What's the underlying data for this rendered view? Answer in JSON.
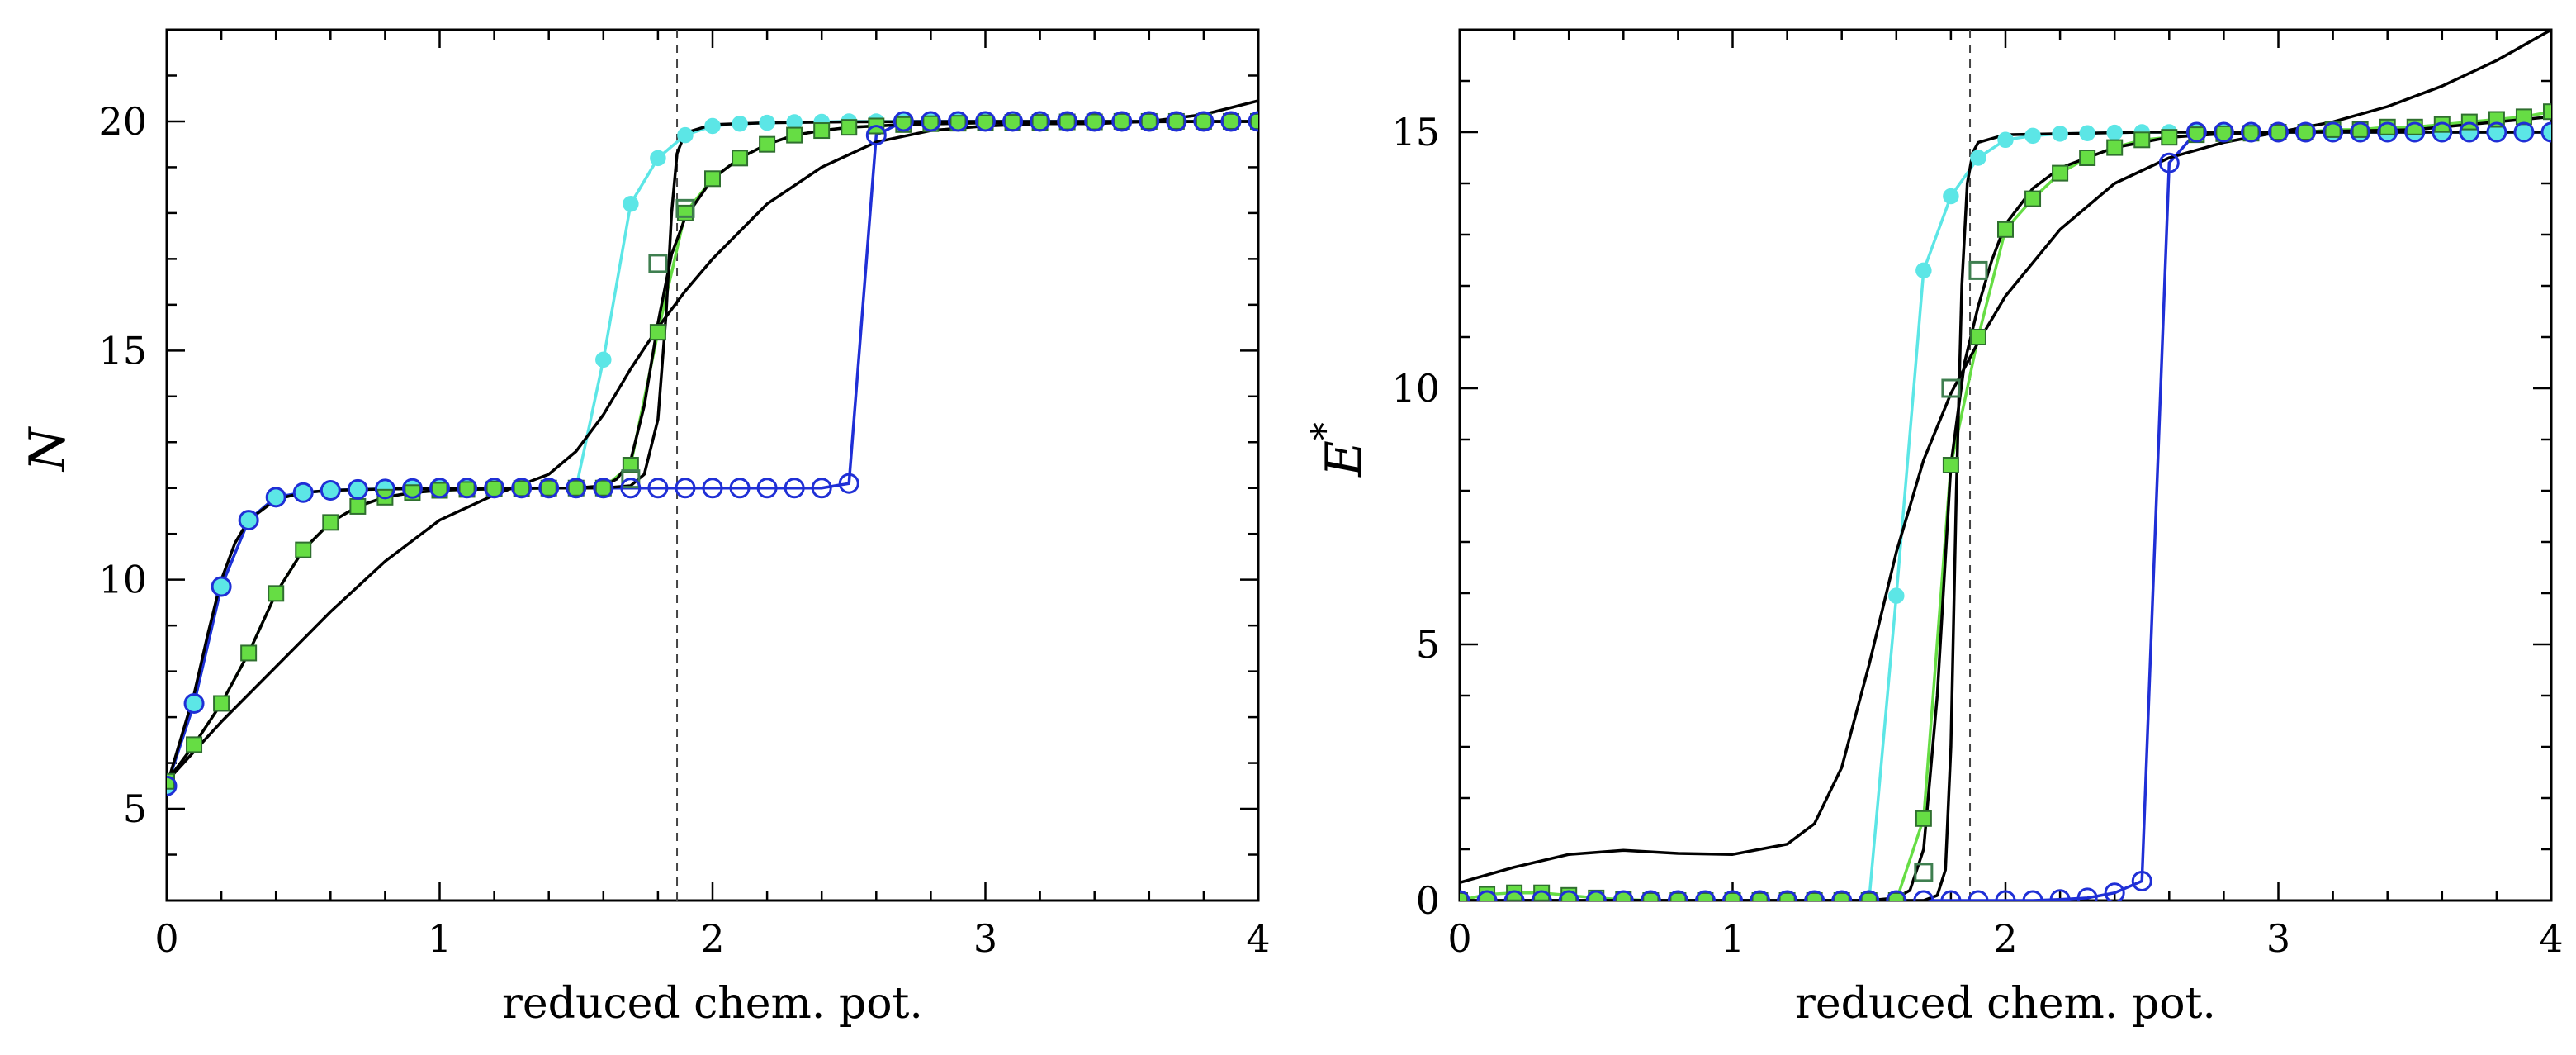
{
  "chart_data": [
    {
      "type": "line",
      "panel": "left",
      "xlabel": "reduced chem. pot.",
      "ylabel": "N",
      "ylabel_superscript": "",
      "xlim": [
        0,
        4
      ],
      "ylim": [
        3,
        22
      ],
      "xticks": [
        0,
        1,
        2,
        3,
        4
      ],
      "yticks": [
        5,
        10,
        15,
        20
      ],
      "vline": 1.87,
      "series": [
        {
          "name": "cyan filled circles",
          "color": "#5ce6e6",
          "marker": "filled-circle",
          "x": [
            0,
            0.1,
            0.2,
            0.3,
            0.4,
            0.5,
            0.6,
            0.7,
            0.8,
            0.9,
            1.0,
            1.1,
            1.2,
            1.3,
            1.4,
            1.5,
            1.6,
            1.7,
            1.8,
            1.9,
            2.0,
            2.1,
            2.2,
            2.3,
            2.4,
            2.5,
            2.6,
            2.7,
            2.8,
            2.9,
            3.0,
            3.1,
            3.2,
            3.3,
            3.4,
            3.5,
            3.6,
            3.7,
            3.8,
            3.9,
            4.0
          ],
          "y": [
            5.5,
            7.3,
            9.85,
            11.3,
            11.8,
            11.9,
            11.95,
            11.97,
            11.98,
            11.99,
            12,
            12,
            12,
            12,
            12,
            12,
            14.8,
            18.2,
            19.2,
            19.7,
            19.9,
            19.95,
            19.97,
            19.98,
            19.99,
            20,
            20,
            20,
            20,
            20,
            20,
            20,
            20,
            20,
            20,
            20,
            20,
            20,
            20,
            20,
            20
          ]
        },
        {
          "name": "green filled squares",
          "color": "#66dd44",
          "marker": "filled-square",
          "x": [
            0,
            0.1,
            0.2,
            0.3,
            0.4,
            0.5,
            0.6,
            0.7,
            0.8,
            0.9,
            1.0,
            1.1,
            1.2,
            1.3,
            1.4,
            1.5,
            1.6,
            1.7,
            1.8,
            1.9,
            2.0,
            2.1,
            2.2,
            2.3,
            2.4,
            2.5,
            2.6,
            2.7,
            2.8,
            2.9,
            3.0,
            3.1,
            3.2,
            3.3,
            3.4,
            3.5,
            3.6,
            3.7,
            3.8,
            3.9,
            4.0
          ],
          "y": [
            5.6,
            6.4,
            7.3,
            8.4,
            9.7,
            10.65,
            11.25,
            11.6,
            11.8,
            11.9,
            11.95,
            11.97,
            11.98,
            11.99,
            12,
            12,
            12,
            12.5,
            15.4,
            18.0,
            18.75,
            19.2,
            19.5,
            19.7,
            19.8,
            19.87,
            19.9,
            19.93,
            19.95,
            19.96,
            19.97,
            19.98,
            19.98,
            19.99,
            19.99,
            20,
            20,
            20,
            20,
            20,
            20
          ]
        },
        {
          "name": "dark green open squares",
          "color": "#3f7f50",
          "marker": "open-square",
          "x": [
            1.7,
            1.8,
            1.9
          ],
          "y": [
            12.2,
            16.9,
            18.1
          ]
        },
        {
          "name": "blue open circles",
          "color": "#1f2fd6",
          "marker": "open-circle",
          "x": [
            0,
            0.1,
            0.2,
            0.3,
            0.4,
            0.5,
            0.6,
            0.7,
            0.8,
            0.9,
            1.0,
            1.1,
            1.2,
            1.3,
            1.4,
            1.5,
            1.6,
            1.7,
            1.8,
            1.9,
            2.0,
            2.1,
            2.2,
            2.3,
            2.4,
            2.5,
            2.6,
            2.7,
            2.8,
            2.9,
            3.0,
            3.1,
            3.2,
            3.3,
            3.4,
            3.5,
            3.6,
            3.7,
            3.8,
            3.9,
            4.0
          ],
          "y": [
            5.5,
            7.3,
            9.85,
            11.3,
            11.8,
            11.9,
            11.95,
            11.97,
            11.98,
            11.99,
            12,
            12,
            12,
            12,
            12,
            12,
            12,
            12,
            12,
            12,
            12,
            12,
            12,
            12,
            12,
            12.1,
            19.7,
            20,
            20,
            20,
            20,
            20,
            20,
            20,
            20,
            20,
            20,
            20,
            20,
            20,
            20
          ]
        },
        {
          "name": "black sharp curve",
          "color": "#000000",
          "marker": "none",
          "x": [
            0,
            0.05,
            0.1,
            0.15,
            0.2,
            0.25,
            0.3,
            0.4,
            0.5,
            0.6,
            0.8,
            1.0,
            1.2,
            1.4,
            1.6,
            1.7,
            1.75,
            1.8,
            1.83,
            1.85,
            1.87,
            1.9,
            2.0,
            2.2,
            2.5,
            3.0,
            3.5,
            4.0
          ],
          "y": [
            5.5,
            6.5,
            7.5,
            8.8,
            10.0,
            10.8,
            11.3,
            11.75,
            11.9,
            11.95,
            11.98,
            11.99,
            12,
            12,
            12.0,
            12.05,
            12.3,
            13.5,
            15.8,
            18.0,
            19.3,
            19.75,
            19.93,
            19.97,
            19.99,
            20,
            20,
            20
          ]
        },
        {
          "name": "black medium curve",
          "color": "#000000",
          "marker": "none",
          "x": [
            0,
            0.1,
            0.2,
            0.3,
            0.4,
            0.5,
            0.6,
            0.7,
            0.8,
            0.9,
            1.0,
            1.1,
            1.2,
            1.3,
            1.4,
            1.5,
            1.6,
            1.65,
            1.7,
            1.75,
            1.8,
            1.85,
            1.9,
            2.0,
            2.1,
            2.2,
            2.3,
            2.4,
            2.5,
            2.7,
            3.0,
            3.5,
            4.0
          ],
          "y": [
            5.6,
            6.4,
            7.3,
            8.4,
            9.7,
            10.65,
            11.25,
            11.6,
            11.8,
            11.9,
            11.95,
            11.97,
            11.98,
            11.99,
            12,
            12,
            12.05,
            12.2,
            12.6,
            13.8,
            15.6,
            17.1,
            17.9,
            18.75,
            19.2,
            19.5,
            19.7,
            19.8,
            19.87,
            19.93,
            19.97,
            19.99,
            20
          ]
        },
        {
          "name": "black broad curve",
          "color": "#000000",
          "marker": "none",
          "x": [
            0,
            0.2,
            0.4,
            0.6,
            0.8,
            1.0,
            1.2,
            1.4,
            1.5,
            1.6,
            1.7,
            1.8,
            1.9,
            2.0,
            2.2,
            2.4,
            2.6,
            2.8,
            3.0,
            3.2,
            3.4,
            3.6,
            3.8,
            4.0
          ],
          "y": [
            5.6,
            6.9,
            8.1,
            9.3,
            10.4,
            11.3,
            11.85,
            12.3,
            12.8,
            13.6,
            14.6,
            15.5,
            16.3,
            17.0,
            18.2,
            19.0,
            19.55,
            19.8,
            19.9,
            19.95,
            19.95,
            20.0,
            20.15,
            20.45
          ]
        }
      ]
    },
    {
      "type": "line",
      "panel": "right",
      "xlabel": "reduced chem. pot.",
      "ylabel": "E",
      "ylabel_superscript": "*",
      "xlim": [
        0,
        4
      ],
      "ylim": [
        0,
        17
      ],
      "xticks": [
        0,
        1,
        2,
        3,
        4
      ],
      "yticks": [
        0,
        5,
        10,
        15
      ],
      "vline": 1.87,
      "series": [
        {
          "name": "cyan filled circles",
          "color": "#5ce6e6",
          "marker": "filled-circle",
          "x": [
            0,
            0.1,
            0.2,
            0.3,
            0.4,
            0.5,
            0.6,
            0.7,
            0.8,
            0.9,
            1.0,
            1.1,
            1.2,
            1.3,
            1.4,
            1.5,
            1.6,
            1.7,
            1.8,
            1.9,
            2.0,
            2.1,
            2.2,
            2.3,
            2.4,
            2.5,
            2.6,
            2.7,
            2.8,
            2.9,
            3.0,
            3.1,
            3.2,
            3.3,
            3.4,
            3.5,
            3.6,
            3.7,
            3.8,
            3.9,
            4.0
          ],
          "y": [
            0,
            0,
            0,
            0,
            0,
            0,
            0,
            0,
            0,
            0,
            0,
            0,
            0,
            0,
            0,
            0,
            5.95,
            12.3,
            13.75,
            14.5,
            14.85,
            14.93,
            14.97,
            14.98,
            14.99,
            15,
            15,
            15,
            15,
            15,
            15,
            15,
            15,
            15,
            15,
            15,
            15,
            15,
            15,
            15,
            15
          ]
        },
        {
          "name": "green filled squares",
          "color": "#66dd44",
          "marker": "filled-square",
          "x": [
            0,
            0.1,
            0.2,
            0.3,
            0.4,
            0.5,
            0.6,
            0.7,
            0.8,
            0.9,
            1.0,
            1.1,
            1.2,
            1.3,
            1.4,
            1.5,
            1.6,
            1.7,
            1.8,
            1.9,
            2.0,
            2.1,
            2.2,
            2.3,
            2.4,
            2.5,
            2.6,
            2.7,
            2.8,
            2.9,
            3.0,
            3.1,
            3.2,
            3.3,
            3.4,
            3.5,
            3.6,
            3.7,
            3.8,
            3.9,
            4.0
          ],
          "y": [
            0,
            0.12,
            0.15,
            0.15,
            0.1,
            0.05,
            0.02,
            0,
            0,
            0,
            0,
            0,
            0,
            0,
            0,
            0,
            0,
            1.6,
            8.5,
            11.0,
            13.1,
            13.7,
            14.2,
            14.5,
            14.7,
            14.85,
            14.9,
            14.95,
            14.97,
            14.98,
            15.0,
            15.0,
            15.05,
            15.05,
            15.1,
            15.1,
            15.15,
            15.2,
            15.25,
            15.3,
            15.4
          ]
        },
        {
          "name": "dark green open squares",
          "color": "#3f7f50",
          "marker": "open-square",
          "x": [
            1.7,
            1.8,
            1.9
          ],
          "y": [
            0.55,
            10.0,
            12.3
          ]
        },
        {
          "name": "blue open circles",
          "color": "#1f2fd6",
          "marker": "open-circle",
          "x": [
            0,
            0.1,
            0.2,
            0.3,
            0.4,
            0.5,
            0.6,
            0.7,
            0.8,
            0.9,
            1.0,
            1.1,
            1.2,
            1.3,
            1.4,
            1.5,
            1.6,
            1.7,
            1.8,
            1.9,
            2.0,
            2.1,
            2.2,
            2.3,
            2.4,
            2.5,
            2.6,
            2.7,
            2.8,
            2.9,
            3.0,
            3.1,
            3.2,
            3.3,
            3.4,
            3.5,
            3.6,
            3.7,
            3.8,
            3.9,
            4.0
          ],
          "y": [
            0,
            0,
            0,
            0,
            0,
            0,
            0,
            0,
            0,
            0,
            0,
            0,
            0,
            0,
            0,
            0,
            0,
            0,
            0,
            0,
            0,
            0,
            0.02,
            0.05,
            0.15,
            0.38,
            14.4,
            15,
            15,
            15,
            15,
            15,
            15,
            15,
            15,
            15,
            15,
            15,
            15,
            15,
            15
          ]
        },
        {
          "name": "black sharp curve",
          "color": "#000000",
          "marker": "none",
          "x": [
            0,
            0.5,
            1.0,
            1.5,
            1.7,
            1.75,
            1.78,
            1.8,
            1.82,
            1.84,
            1.86,
            1.88,
            1.9,
            2.0,
            2.5,
            3.0,
            3.5,
            4.0
          ],
          "y": [
            0,
            0,
            0,
            0,
            0,
            0.1,
            0.6,
            3.0,
            8.0,
            12.0,
            14.0,
            14.6,
            14.8,
            14.95,
            15.0,
            15.0,
            15.0,
            15.0
          ]
        },
        {
          "name": "black medium curve",
          "color": "#000000",
          "marker": "none",
          "x": [
            0,
            0.5,
            1.0,
            1.5,
            1.6,
            1.65,
            1.7,
            1.75,
            1.8,
            1.85,
            1.9,
            1.95,
            2.0,
            2.1,
            2.2,
            2.4,
            2.6,
            2.8,
            3.0,
            3.5,
            4.0
          ],
          "y": [
            0,
            0,
            0,
            0,
            0.05,
            0.2,
            1.0,
            4.0,
            8.5,
            10.5,
            11.6,
            12.5,
            13.2,
            13.9,
            14.3,
            14.7,
            14.9,
            14.97,
            15.0,
            15.05,
            15.3
          ]
        },
        {
          "name": "black broad curve",
          "color": "#000000",
          "marker": "none",
          "x": [
            0,
            0.2,
            0.4,
            0.6,
            0.8,
            1.0,
            1.2,
            1.3,
            1.4,
            1.5,
            1.6,
            1.7,
            1.8,
            1.9,
            2.0,
            2.2,
            2.4,
            2.6,
            2.8,
            3.0,
            3.2,
            3.4,
            3.6,
            3.8,
            4.0
          ],
          "y": [
            0.35,
            0.65,
            0.9,
            0.98,
            0.92,
            0.9,
            1.1,
            1.5,
            2.6,
            4.6,
            6.8,
            8.6,
            9.9,
            10.9,
            11.8,
            13.1,
            14.0,
            14.5,
            14.8,
            15.0,
            15.2,
            15.5,
            15.9,
            16.4,
            17.0
          ]
        }
      ]
    }
  ]
}
